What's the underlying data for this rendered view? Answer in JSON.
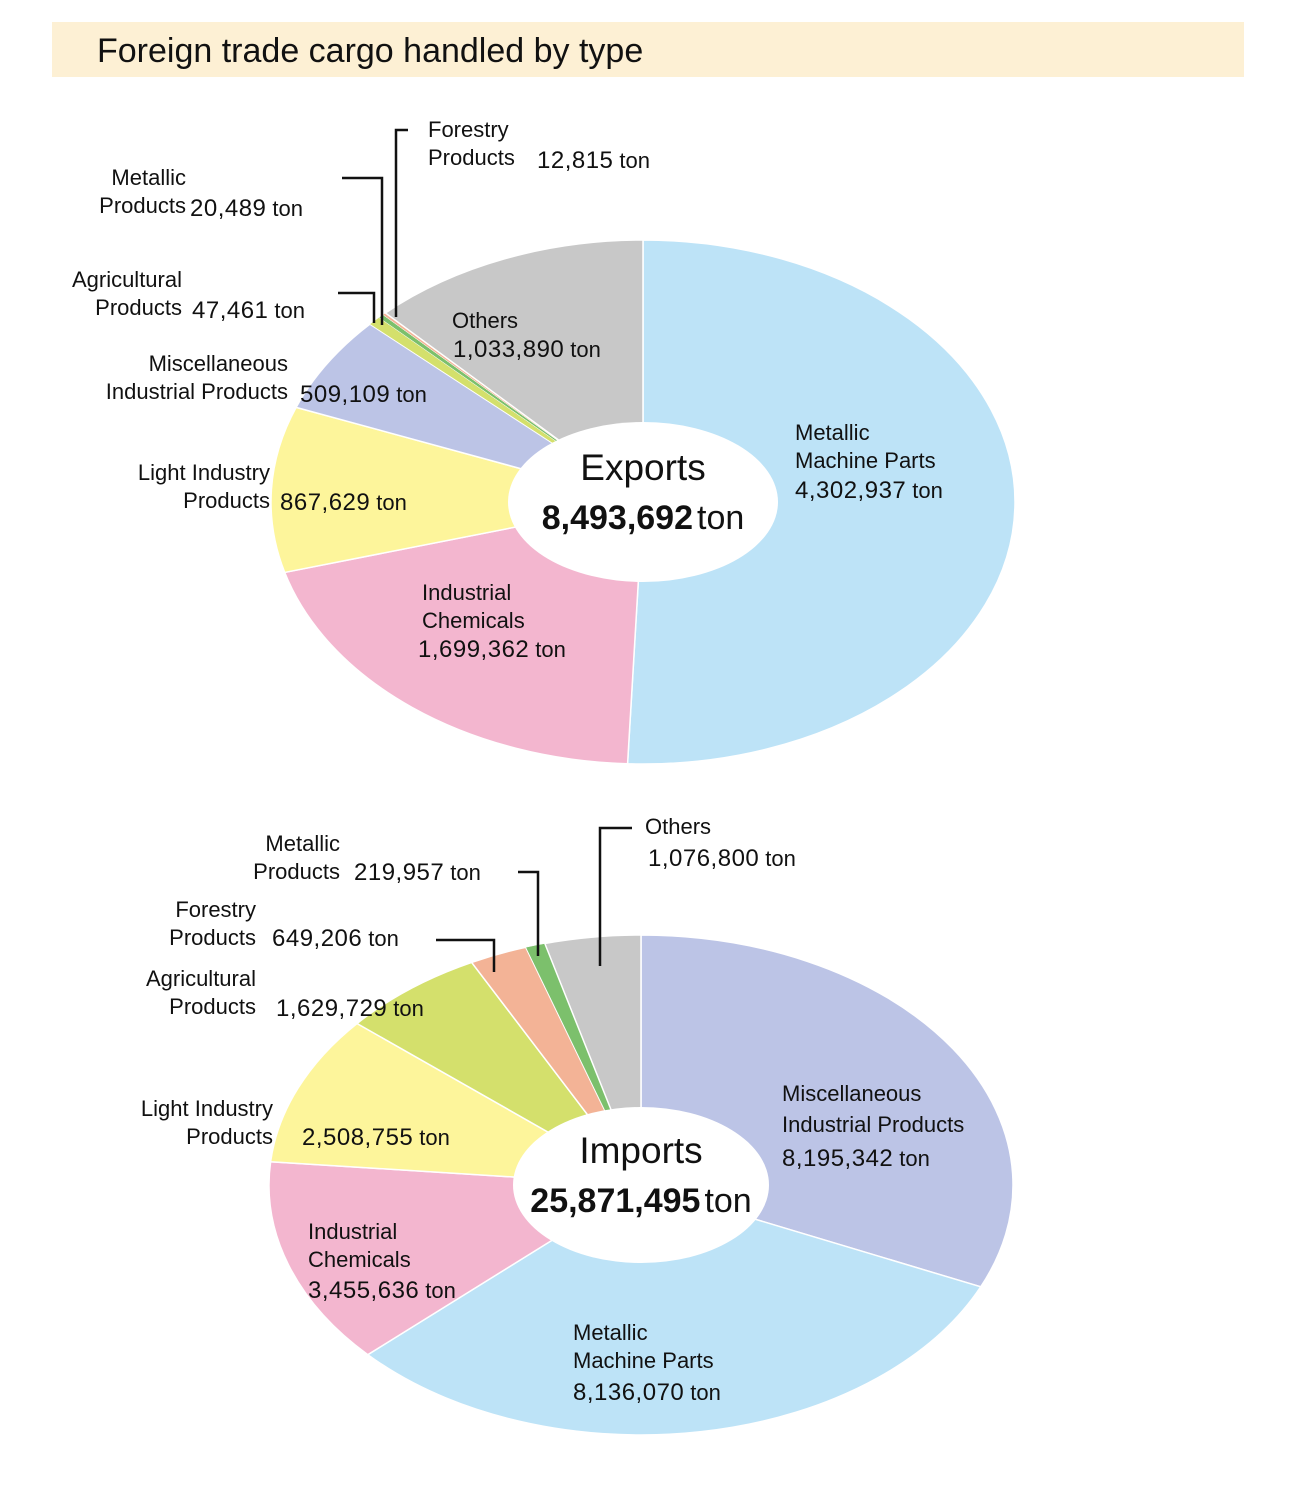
{
  "page_title": "Foreign trade cargo handled by type",
  "chart_data": [
    {
      "type": "pie",
      "center_title": "Exports",
      "total_value": "8,493,692",
      "total_unit": "ton",
      "unit": "ton",
      "slices": [
        {
          "key": "mmp",
          "lines": [
            "Metallic",
            "Machine Parts"
          ],
          "value": 4302937,
          "value_text": "4,302,937",
          "color": "#bde3f7"
        },
        {
          "key": "ic",
          "lines": [
            "Industrial",
            "Chemicals"
          ],
          "value": 1699362,
          "value_text": "1,699,362",
          "color": "#f3b6cf"
        },
        {
          "key": "lip",
          "lines": [
            "Light Industry",
            "Products"
          ],
          "value": 867629,
          "value_text": "867,629",
          "color": "#fdf59b"
        },
        {
          "key": "mip",
          "lines": [
            "Miscellaneous",
            "Industrial Products"
          ],
          "value": 509109,
          "value_text": "509,109",
          "color": "#bcc4e6"
        },
        {
          "key": "ag",
          "lines": [
            "Agricultural",
            "Products"
          ],
          "value": 47461,
          "value_text": "47,461",
          "color": "#d4e06c"
        },
        {
          "key": "mp",
          "lines": [
            "Metallic",
            "Products"
          ],
          "value": 20489,
          "value_text": "20,489",
          "color": "#7cc06c"
        },
        {
          "key": "fp",
          "lines": [
            "Forestry",
            "Products"
          ],
          "value": 12815,
          "value_text": "12,815",
          "color": "#f3b396"
        },
        {
          "key": "oth",
          "lines": [
            "Others"
          ],
          "value": 1033890,
          "value_text": "1,033,890",
          "color": "#c8c8c8"
        }
      ]
    },
    {
      "type": "pie",
      "center_title": "Imports",
      "total_value": "25,871,495",
      "total_unit": "ton",
      "unit": "ton",
      "slices": [
        {
          "key": "mip",
          "lines": [
            "Miscellaneous",
            "Industrial Products"
          ],
          "value": 8195342,
          "value_text": "8,195,342",
          "color": "#bcc4e6"
        },
        {
          "key": "mmp",
          "lines": [
            "Metallic",
            "Machine Parts"
          ],
          "value": 8136070,
          "value_text": "8,136,070",
          "color": "#bde3f7"
        },
        {
          "key": "ic",
          "lines": [
            "Industrial",
            "Chemicals"
          ],
          "value": 3455636,
          "value_text": "3,455,636",
          "color": "#f3b6cf"
        },
        {
          "key": "lip",
          "lines": [
            "Light Industry",
            "Products"
          ],
          "value": 2508755,
          "value_text": "2,508,755",
          "color": "#fdf59b"
        },
        {
          "key": "ag",
          "lines": [
            "Agricultural",
            "Products"
          ],
          "value": 1629729,
          "value_text": "1,629,729",
          "color": "#d4e06c"
        },
        {
          "key": "fp",
          "lines": [
            "Forestry",
            "Products"
          ],
          "value": 649206,
          "value_text": "649,206",
          "color": "#f3b396"
        },
        {
          "key": "mp",
          "lines": [
            "Metallic",
            "Products"
          ],
          "value": 219957,
          "value_text": "219,957",
          "color": "#7cc06c"
        },
        {
          "key": "oth",
          "lines": [
            "Others"
          ],
          "value": 1076800,
          "value_text": "1,076,800",
          "color": "#c8c8c8"
        }
      ]
    }
  ]
}
